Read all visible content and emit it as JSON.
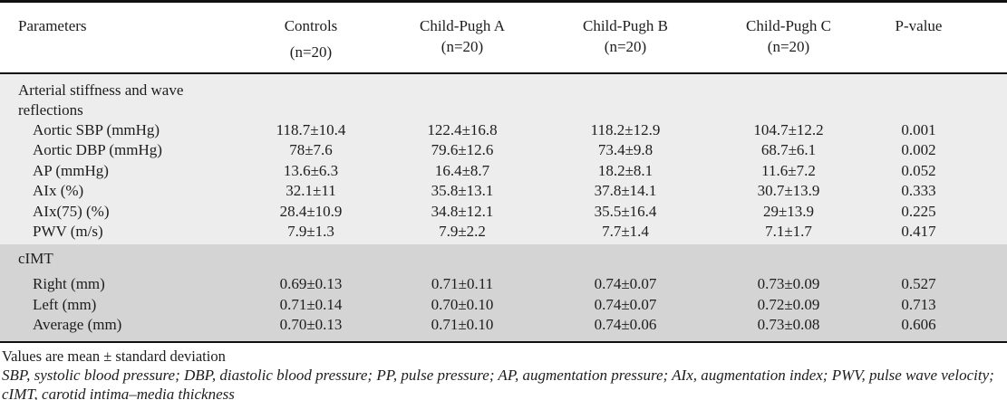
{
  "colors": {
    "section_light_bg": "#ededed",
    "section_dark_bg": "#d4d4d4",
    "rule": "#101010",
    "text": "#1d1d1d"
  },
  "table": {
    "header": {
      "parameters_label": "Parameters",
      "columns": [
        {
          "title": "Controls",
          "subtitle": "(n=20)"
        },
        {
          "title": "Child-Pugh A",
          "subtitle": "(n=20)"
        },
        {
          "title": "Child-Pugh B",
          "subtitle": "(n=20)"
        },
        {
          "title": "Child-Pugh C",
          "subtitle": "(n=20)"
        },
        {
          "title": "P-value",
          "subtitle": ""
        }
      ]
    },
    "sections": [
      {
        "title_lines": [
          "Arterial stiffness and wave",
          "reflections"
        ],
        "rows": [
          {
            "label": "Aortic SBP (mmHg)",
            "values": [
              "118.7±10.4",
              "122.4±16.8",
              "118.2±12.9",
              "104.7±12.2",
              "0.001"
            ]
          },
          {
            "label": "Aortic DBP (mmHg)",
            "values": [
              "78±7.6",
              "79.6±12.6",
              "73.4±9.8",
              "68.7±6.1",
              "0.002"
            ]
          },
          {
            "label": "AP (mmHg)",
            "values": [
              "13.6±6.3",
              "16.4±8.7",
              "18.2±8.1",
              "11.6±7.2",
              "0.052"
            ]
          },
          {
            "label": "AIx (%)",
            "values": [
              "32.1±11",
              "35.8±13.1",
              "37.8±14.1",
              "30.7±13.9",
              "0.333"
            ]
          },
          {
            "label": "AIx(75) (%)",
            "values": [
              "28.4±10.9",
              "34.8±12.1",
              "35.5±16.4",
              "29±13.9",
              "0.225"
            ]
          },
          {
            "label": "PWV (m/s)",
            "values": [
              "7.9±1.3",
              "7.9±2.2",
              "7.7±1.4",
              "7.1±1.7",
              "0.417"
            ]
          }
        ]
      },
      {
        "title_lines": [
          "cIMT"
        ],
        "rows": [
          {
            "label": "Right (mm)",
            "values": [
              "0.69±0.13",
              "0.71±0.11",
              "0.74±0.07",
              "0.73±0.09",
              "0.527"
            ]
          },
          {
            "label": "Left (mm)",
            "values": [
              "0.71±0.14",
              "0.70±0.10",
              "0.74±0.07",
              "0.72±0.09",
              "0.713"
            ]
          },
          {
            "label": "Average (mm)",
            "values": [
              "0.70±0.13",
              "0.71±0.10",
              "0.74±0.06",
              "0.73±0.08",
              "0.606"
            ]
          }
        ]
      }
    ],
    "footnotes": {
      "note": "Values are mean ± standard deviation",
      "abbreviations": "SBP, systolic blood pressure; DBP, diastolic blood pressure; PP, pulse pressure; AP, augmentation pressure; AIx, augmentation index; PWV, pulse wave velocity; cIMT, carotid intima–media thickness"
    }
  }
}
